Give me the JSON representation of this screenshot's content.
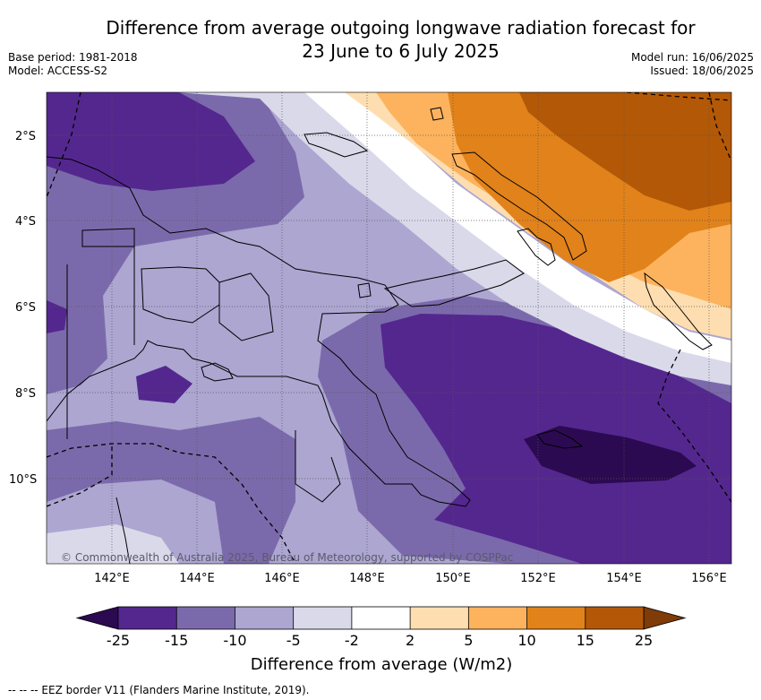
{
  "title_line1": "Difference from average outgoing longwave radiation forecast for",
  "title_line2": "23 June to 6 July 2025",
  "base_period": "Base period: 1981-2018",
  "model": "Model: ACCESS-S2",
  "model_run": "Model run: 16/06/2025",
  "issued": "Issued: 18/06/2025",
  "copyright": "© Commonwealth of Australia 2025, Bureau of Meteorology, supported by COSPPac",
  "lat_labels": [
    "2°S",
    "4°S",
    "6°S",
    "8°S",
    "10°S"
  ],
  "lon_labels": [
    "142°E",
    "144°E",
    "146°E",
    "148°E",
    "150°E",
    "152°E",
    "154°E",
    "156°E"
  ],
  "colorbar": {
    "title": "Difference from average (W/m2)",
    "tick_labels": [
      "-25",
      "-15",
      "-10",
      "-5",
      "-2",
      "2",
      "5",
      "10",
      "15",
      "25"
    ],
    "colors": [
      "#2c0a52",
      "#54278f",
      "#7b6aab",
      "#aca6d1",
      "#d9d9ea",
      "#ffffff",
      "#fedeb0",
      "#fdb35e",
      "#e1821a",
      "#b35806",
      "#7f3b08"
    ]
  },
  "footer": "-- -- -- EEZ border V11 (Flanders Marine Institute, 2019)."
}
